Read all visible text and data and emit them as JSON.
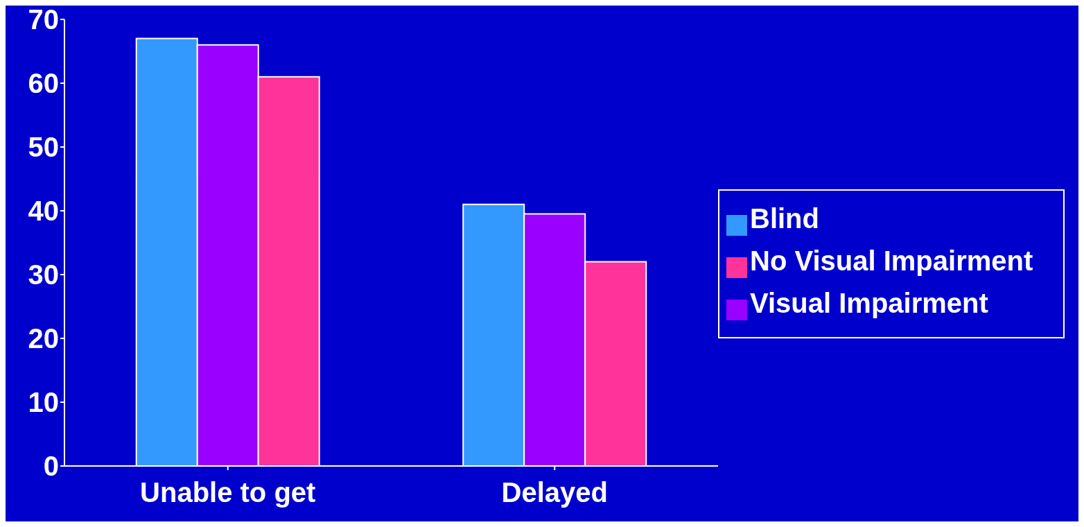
{
  "chart_data": {
    "type": "bar",
    "categories": [
      "Unable to get",
      "Delayed"
    ],
    "series": [
      {
        "name": "Blind",
        "color": "#3399ff",
        "values": [
          67,
          41
        ]
      },
      {
        "name": "Visual Impairment",
        "color": "#9900ff",
        "values": [
          66,
          39.5
        ]
      },
      {
        "name": "No Visual Impairment",
        "color": "#ff3399",
        "values": [
          61,
          32
        ]
      }
    ],
    "ylim": [
      0,
      70
    ],
    "yticks": [
      0,
      10,
      20,
      30,
      40,
      50,
      60,
      70
    ],
    "grid": false,
    "legend": "right"
  }
}
